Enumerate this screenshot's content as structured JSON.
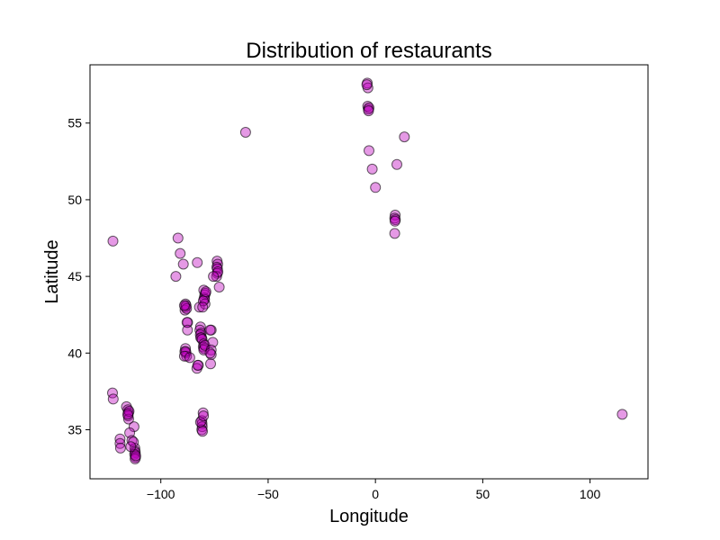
{
  "chart_data": {
    "type": "scatter",
    "title": "Distribution of restaurants",
    "xlabel": "Longitude",
    "ylabel": "Latitude",
    "xlim": [
      -133,
      127
    ],
    "ylim": [
      31.8,
      58.8
    ],
    "xticks": [
      -100,
      -50,
      0,
      50,
      100
    ],
    "yticks": [
      35,
      40,
      45,
      50,
      55
    ],
    "grid": false,
    "colors": {
      "fill": "#bf00bf",
      "edge": "#000000"
    },
    "marker_alpha": 0.4,
    "points": [
      [
        -122.3,
        47.3
      ],
      [
        -92,
        47.5
      ],
      [
        -91,
        46.5
      ],
      [
        -89.5,
        45.8
      ],
      [
        -93,
        45.0
      ],
      [
        -83,
        45.9
      ],
      [
        -88.5,
        43.2
      ],
      [
        -88.5,
        43.0
      ],
      [
        -88.7,
        42.8
      ],
      [
        -88.2,
        43.1
      ],
      [
        -88.0,
        42.9
      ],
      [
        -89,
        43.1
      ],
      [
        -87.5,
        42.0
      ],
      [
        -87.8,
        42.0
      ],
      [
        -87.6,
        41.5
      ],
      [
        -81.5,
        41.7
      ],
      [
        -81.8,
        41.5
      ],
      [
        -81.2,
        41.3
      ],
      [
        -81.6,
        41.2
      ],
      [
        -81,
        41.0
      ],
      [
        -81.4,
        41.0
      ],
      [
        -80.8,
        40.9
      ],
      [
        -82,
        43.0
      ],
      [
        -80,
        40.6
      ],
      [
        -80.2,
        40.4
      ],
      [
        -79.8,
        40.3
      ],
      [
        -80,
        40.2
      ],
      [
        -79.5,
        40.5
      ],
      [
        -76.5,
        41.5
      ],
      [
        -77,
        41.5
      ],
      [
        -75.8,
        40.7
      ],
      [
        -76.5,
        40.2
      ],
      [
        -76.5,
        39.9
      ],
      [
        -76.8,
        39.3
      ],
      [
        -77,
        40.0
      ],
      [
        -88.5,
        40.3
      ],
      [
        -88.3,
        40.0
      ],
      [
        -88.8,
        40.1
      ],
      [
        -88.0,
        39.8
      ],
      [
        -88.4,
        40.1
      ],
      [
        -89,
        39.8
      ],
      [
        -86.5,
        39.7
      ],
      [
        -82.5,
        39.2
      ],
      [
        -83.2,
        39.0
      ],
      [
        -82.8,
        39.2
      ],
      [
        -80.0,
        44.1
      ],
      [
        -79.5,
        43.8
      ],
      [
        -79.8,
        43.6
      ],
      [
        -79.2,
        43.9
      ],
      [
        -79.6,
        43.5
      ],
      [
        -79.4,
        43.2
      ],
      [
        -80.2,
        43.4
      ],
      [
        -80.5,
        43.0
      ],
      [
        -79.0,
        44.0
      ],
      [
        -73.8,
        46.0
      ],
      [
        -73.5,
        45.8
      ],
      [
        -73.9,
        45.6
      ],
      [
        -73.6,
        45.5
      ],
      [
        -73.7,
        45.2
      ],
      [
        -74.0,
        45.0
      ],
      [
        -73.4,
        45.3
      ],
      [
        -72.8,
        44.3
      ],
      [
        -75.5,
        45.0
      ],
      [
        -116,
        36.5
      ],
      [
        -115.3,
        36.3
      ],
      [
        -115.1,
        36.1
      ],
      [
        -115.2,
        35.9
      ],
      [
        -115.0,
        35.7
      ],
      [
        -114.8,
        36.2
      ],
      [
        -115.4,
        36.0
      ],
      [
        -80.9,
        35.6
      ],
      [
        -80.8,
        35.4
      ],
      [
        -80.7,
        35.2
      ],
      [
        -80.9,
        35.0
      ],
      [
        -80.6,
        34.9
      ],
      [
        -81.5,
        35.5
      ],
      [
        -80.3,
        36.1
      ],
      [
        -80.1,
        35.9
      ],
      [
        -112.1,
        33.8
      ],
      [
        -112.0,
        33.6
      ],
      [
        -111.9,
        33.5
      ],
      [
        -112.2,
        33.4
      ],
      [
        -111.8,
        33.2
      ],
      [
        -112.0,
        33.1
      ],
      [
        -111.7,
        33.3
      ],
      [
        -112.5,
        35.2
      ],
      [
        -114.5,
        34.8
      ],
      [
        -113.5,
        34.3
      ],
      [
        -112.8,
        34.2
      ],
      [
        -114,
        33.9
      ],
      [
        -119,
        34.4
      ],
      [
        -119,
        34.1
      ],
      [
        -118.8,
        33.8
      ],
      [
        -122.5,
        37.4
      ],
      [
        -122.2,
        37.0
      ],
      [
        -60.5,
        54.4
      ],
      [
        -3.8,
        57.6
      ],
      [
        -3.5,
        57.3
      ],
      [
        -4.0,
        57.5
      ],
      [
        -3.6,
        56.1
      ],
      [
        -3.3,
        55.9
      ],
      [
        -3.0,
        56.0
      ],
      [
        -3.2,
        55.8
      ],
      [
        -3.0,
        53.2
      ],
      [
        -1.5,
        52.0
      ],
      [
        10.0,
        52.3
      ],
      [
        0.0,
        50.8
      ],
      [
        13.5,
        54.1
      ],
      [
        9.2,
        49.0
      ],
      [
        9.0,
        48.8
      ],
      [
        9.3,
        48.7
      ],
      [
        9.1,
        48.6
      ],
      [
        9.0,
        47.8
      ],
      [
        115.0,
        36.0
      ]
    ]
  }
}
